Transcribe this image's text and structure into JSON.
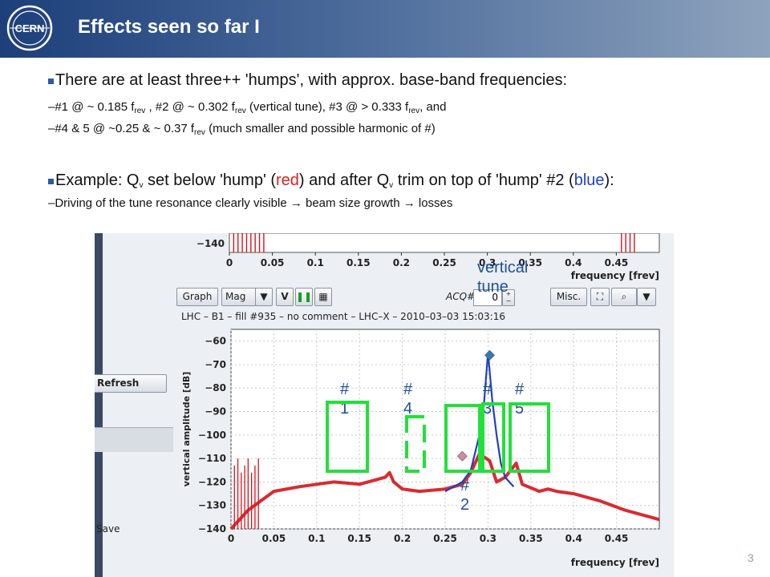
{
  "slide": {
    "title": "Effects seen so far I",
    "logo_text": "CERN",
    "page_number": "3"
  },
  "bullets": {
    "b1": "There are at least three++ 'humps', with approx. base-band frequencies:",
    "b2": {
      "p1": "–#1 @ ~ 0.185 f",
      "s1": "rev",
      "p2": " ,  #2 @ ~ 0.302 f",
      "s2": "rev",
      "p3": " (vertical tune), #3 @ > 0.333 f",
      "s3": "rev",
      "p4": ", and"
    },
    "b3": {
      "p1": "–#4 & 5 @ ~0.25 & ~ 0.37 f",
      "s1": "rev",
      "p2": " (much smaller and possible harmonic of #)"
    },
    "b4": {
      "p1": "Example: Q",
      "s1": "v",
      "p2": " set below 'hump' (",
      "red": "red",
      "p3": ") and after Q",
      "s2": "v",
      "p4": " trim on top of 'hump' #2 (",
      "blue": "blue",
      "p5": "):"
    },
    "b5": "–Driving of the tune resonance clearly visible → beam size growth → losses"
  },
  "screenshot": {
    "top_ytick": "−140",
    "xticks": [
      "0",
      "0.05",
      "0.1",
      "0.15",
      "0.2",
      "0.25",
      "0.3",
      "0.35",
      "0.4",
      "0.45"
    ],
    "xlabel": "frequency [frev]",
    "toolbar": {
      "graph": "Graph",
      "mag": "Mag",
      "v": "V",
      "acq_label": "ACQ#",
      "acq_value": "0",
      "misc": "Misc."
    },
    "left_panel": {
      "refresh": "Refresh",
      "save": "Save"
    },
    "plot_title": "LHC – B1 – fill #935 – no comment – LHC–X – 2010–03–03 15:03:16",
    "ylabel": "vertical amplitude [dB]",
    "yticks": [
      "−60",
      "−70",
      "−80",
      "−90",
      "−100",
      "−110",
      "−120",
      "−130",
      "−140"
    ]
  },
  "annotations": {
    "vertical_tune": [
      "vertical",
      "tune"
    ],
    "h1": [
      "#",
      "1"
    ],
    "h4": [
      "#",
      "4"
    ],
    "h3": [
      "#",
      "3"
    ],
    "h5": [
      "#",
      "5"
    ],
    "h2": [
      "#",
      "2"
    ]
  },
  "chart_data": {
    "type": "line",
    "title": "LHC – B1 – fill #935 – no comment – LHC–X – 2010–03–03 15:03:16",
    "xlabel": "frequency [frev]",
    "ylabel": "vertical amplitude [dB]",
    "xlim": [
      0,
      0.5
    ],
    "ylim": [
      -140,
      -55
    ],
    "grid": true,
    "series": [
      {
        "color": "#d4141c",
        "x": [
          0.0,
          0.02,
          0.05,
          0.08,
          0.1,
          0.12,
          0.15,
          0.18,
          0.185,
          0.19,
          0.2,
          0.22,
          0.25,
          0.27,
          0.28,
          0.29,
          0.302,
          0.31,
          0.32,
          0.333,
          0.34,
          0.36,
          0.37,
          0.38,
          0.4,
          0.43,
          0.46,
          0.5
        ],
        "y": [
          -140,
          -132,
          -124,
          -122,
          -121,
          -120,
          -121,
          -118,
          -116,
          -120,
          -123,
          -124,
          -123,
          -121,
          -116,
          -108,
          -111,
          -120,
          -118,
          -112,
          -121,
          -124,
          -123,
          -124,
          -125,
          -128,
          -132,
          -136
        ]
      },
      {
        "color": "#1f3fc4",
        "x": [
          0.25,
          0.26,
          0.27,
          0.28,
          0.29,
          0.295,
          0.3,
          0.305,
          0.31,
          0.315,
          0.32,
          0.33
        ],
        "y": [
          -124,
          -122,
          -120,
          -115,
          -100,
          -88,
          -65,
          -85,
          -100,
          -112,
          -118,
          -122
        ]
      }
    ],
    "marker_points": [
      {
        "x": 0.302,
        "y": -66,
        "color": "#2c7bbf"
      },
      {
        "x": 0.27,
        "y": -109,
        "color": "#d08aa6"
      }
    ]
  }
}
